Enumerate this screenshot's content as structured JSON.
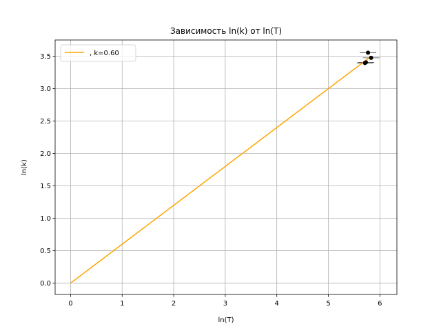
{
  "chart_data": {
    "type": "scatter",
    "title": "Зависимость ln(k) от ln(T)",
    "xlabel": "ln(T)",
    "ylabel": "ln(k)",
    "xlim": [
      -0.3,
      6.33
    ],
    "ylim": [
      -0.175,
      3.75
    ],
    "xticks": [
      0,
      1,
      2,
      3,
      4,
      5,
      6
    ],
    "xtick_labels": [
      "0",
      "1",
      "2",
      "3",
      "4",
      "5",
      "6"
    ],
    "yticks": [
      0.0,
      0.5,
      1.0,
      1.5,
      2.0,
      2.5,
      3.0,
      3.5
    ],
    "ytick_labels": [
      "0.0",
      "0.5",
      "1.0",
      "1.5",
      "2.0",
      "2.5",
      "3.0",
      "3.5"
    ],
    "grid": true,
    "legend": {
      "placement": "top-left",
      "entries": [
        ", k=0.60"
      ]
    },
    "colors": {
      "fit_line": "#ffa500",
      "points": "#000000",
      "errorbars": "#444444"
    },
    "series": [
      {
        "kind": "points_with_xerror",
        "x": [
          5.77,
          5.83,
          5.73,
          5.71
        ],
        "y": [
          3.555,
          3.475,
          3.405,
          3.395
        ],
        "xerr": [
          0.16,
          0.16,
          0.16,
          0.16
        ]
      },
      {
        "kind": "line",
        "name": ", k=0.60",
        "x": [
          0,
          5.8
        ],
        "y": [
          0,
          3.48
        ]
      }
    ]
  }
}
